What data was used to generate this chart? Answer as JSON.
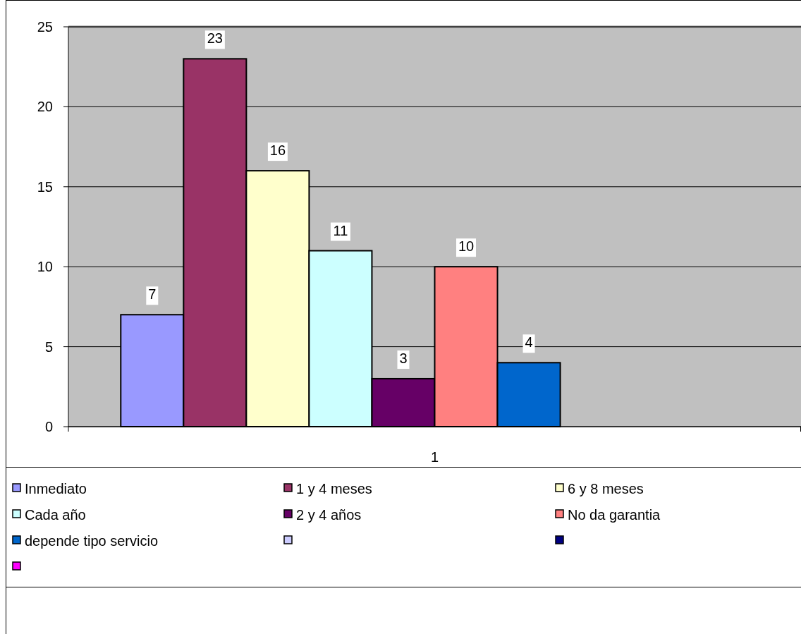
{
  "chart_data": {
    "type": "bar",
    "categories": [
      "1"
    ],
    "series": [
      {
        "name": "Inmediato",
        "color": "#9999ff",
        "values": [
          7
        ]
      },
      {
        "name": "1 y 4 meses",
        "color": "#993366",
        "values": [
          23
        ]
      },
      {
        "name": "6 y 8 meses",
        "color": "#ffffcc",
        "values": [
          16
        ]
      },
      {
        "name": "Cada año",
        "color": "#ccffff",
        "values": [
          11
        ]
      },
      {
        "name": "2 y 4 años",
        "color": "#660066",
        "values": [
          3
        ]
      },
      {
        "name": "No da garantia",
        "color": "#ff8080",
        "values": [
          10
        ]
      },
      {
        "name": "depende tipo servicio",
        "color": "#0066cc",
        "values": [
          4
        ]
      },
      {
        "color": "#ccccff",
        "values": [
          null
        ]
      },
      {
        "color": "#000080",
        "values": [
          null
        ]
      },
      {
        "color": "#ff00ff",
        "values": [
          null
        ]
      }
    ],
    "ylim": [
      0,
      25
    ],
    "yticks": [
      0,
      5,
      10,
      15,
      20,
      25
    ],
    "grid": "y",
    "data_labels": true,
    "legend": "bottom"
  }
}
